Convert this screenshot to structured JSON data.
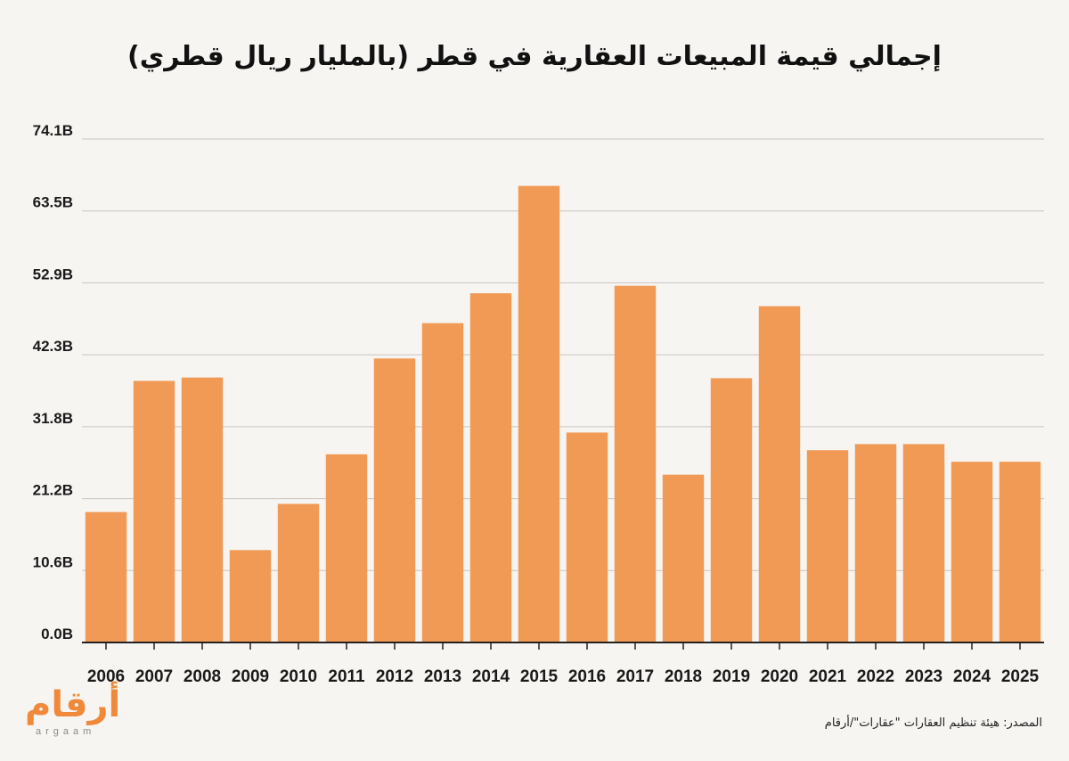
{
  "title": "إجمالي قيمة المبيعات العقارية في قطر (بالمليار ريال قطري)",
  "source": "المصدر: هيئة تنظيم العقارات \"عقارات\"/أرقام",
  "logo": {
    "arabic": "أرقام",
    "latin": "argaam"
  },
  "colors": {
    "bar": "#f19a56",
    "grid": "#c9c4c0",
    "background": "#f7f5f2",
    "axis": "#222222"
  },
  "chart_data": {
    "type": "bar",
    "categories": [
      "2006",
      "2007",
      "2008",
      "2009",
      "2010",
      "2011",
      "2012",
      "2013",
      "2014",
      "2015",
      "2016",
      "2017",
      "2018",
      "2019",
      "2020",
      "2021",
      "2022",
      "2023",
      "2024",
      "2025"
    ],
    "values": [
      19.2,
      38.5,
      39.0,
      13.6,
      20.4,
      27.7,
      41.8,
      47.0,
      51.4,
      67.2,
      30.9,
      52.5,
      24.7,
      38.9,
      49.5,
      28.3,
      29.2,
      29.2,
      26.6,
      26.6
    ],
    "y_ticks": [
      "0.0B",
      "10.6B",
      "21.2B",
      "31.8B",
      "42.3B",
      "52.9B",
      "63.5B",
      "74.1B"
    ],
    "ylim": [
      0,
      74.1
    ],
    "grid": true,
    "xlabel": "",
    "ylabel": ""
  }
}
